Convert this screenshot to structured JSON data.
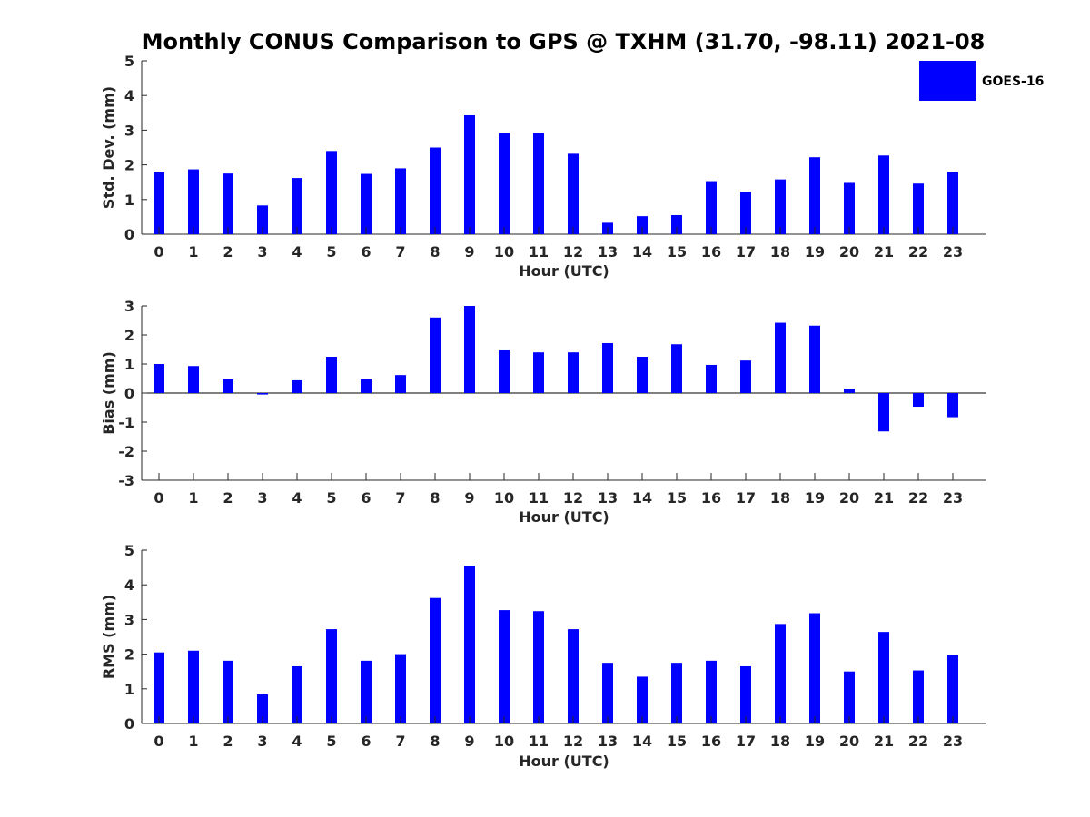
{
  "title": "Monthly CONUS Comparison to GPS @ TXHM (31.70, -98.11) 2021-08",
  "legend": {
    "label": "GOES-16",
    "color": "#0000ff"
  },
  "chart_data": [
    {
      "type": "bar",
      "categories": [
        "0",
        "1",
        "2",
        "3",
        "4",
        "5",
        "6",
        "7",
        "8",
        "9",
        "10",
        "11",
        "12",
        "13",
        "14",
        "15",
        "16",
        "17",
        "18",
        "19",
        "20",
        "21",
        "22",
        "23"
      ],
      "series": [
        {
          "name": "GOES-16",
          "color": "#0000ff",
          "values": [
            1.78,
            1.87,
            1.75,
            0.83,
            1.62,
            2.4,
            1.74,
            1.9,
            2.5,
            3.43,
            2.92,
            2.92,
            2.32,
            0.33,
            0.52,
            0.55,
            1.53,
            1.22,
            1.58,
            2.22,
            1.48,
            2.27,
            1.46,
            1.8
          ]
        }
      ],
      "xlabel": "Hour (UTC)",
      "ylabel": "Std. Dev. (mm)",
      "ylim": [
        0,
        5
      ],
      "yticks": [
        "0",
        "1",
        "2",
        "3",
        "4",
        "5"
      ],
      "grid": false
    },
    {
      "type": "bar",
      "categories": [
        "0",
        "1",
        "2",
        "3",
        "4",
        "5",
        "6",
        "7",
        "8",
        "9",
        "10",
        "11",
        "12",
        "13",
        "14",
        "15",
        "16",
        "17",
        "18",
        "19",
        "20",
        "21",
        "22",
        "23"
      ],
      "series": [
        {
          "name": "GOES-16",
          "color": "#0000ff",
          "values": [
            1.0,
            0.93,
            0.47,
            -0.05,
            0.44,
            1.25,
            0.47,
            0.62,
            2.6,
            3.0,
            1.47,
            1.4,
            1.4,
            1.72,
            1.25,
            1.68,
            0.97,
            1.12,
            2.42,
            2.32,
            0.15,
            -1.32,
            -0.47,
            -0.83
          ]
        }
      ],
      "xlabel": "Hour (UTC)",
      "ylabel": "Bias (mm)",
      "ylim": [
        -3,
        3
      ],
      "yticks": [
        "-3",
        "-2",
        "-1",
        "0",
        "1",
        "2",
        "3"
      ],
      "grid": false
    },
    {
      "type": "bar",
      "categories": [
        "0",
        "1",
        "2",
        "3",
        "4",
        "5",
        "6",
        "7",
        "8",
        "9",
        "10",
        "11",
        "12",
        "13",
        "14",
        "15",
        "16",
        "17",
        "18",
        "19",
        "20",
        "21",
        "22",
        "23"
      ],
      "series": [
        {
          "name": "GOES-16",
          "color": "#0000ff",
          "values": [
            2.05,
            2.1,
            1.81,
            0.84,
            1.65,
            2.72,
            1.81,
            2.0,
            3.62,
            4.55,
            3.27,
            3.24,
            2.72,
            1.75,
            1.35,
            1.75,
            1.81,
            1.65,
            2.87,
            3.18,
            1.5,
            2.64,
            1.53,
            1.98
          ]
        }
      ],
      "xlabel": "Hour (UTC)",
      "ylabel": "RMS (mm)",
      "ylim": [
        0,
        5
      ],
      "yticks": [
        "0",
        "1",
        "2",
        "3",
        "4",
        "5"
      ],
      "grid": false
    }
  ]
}
